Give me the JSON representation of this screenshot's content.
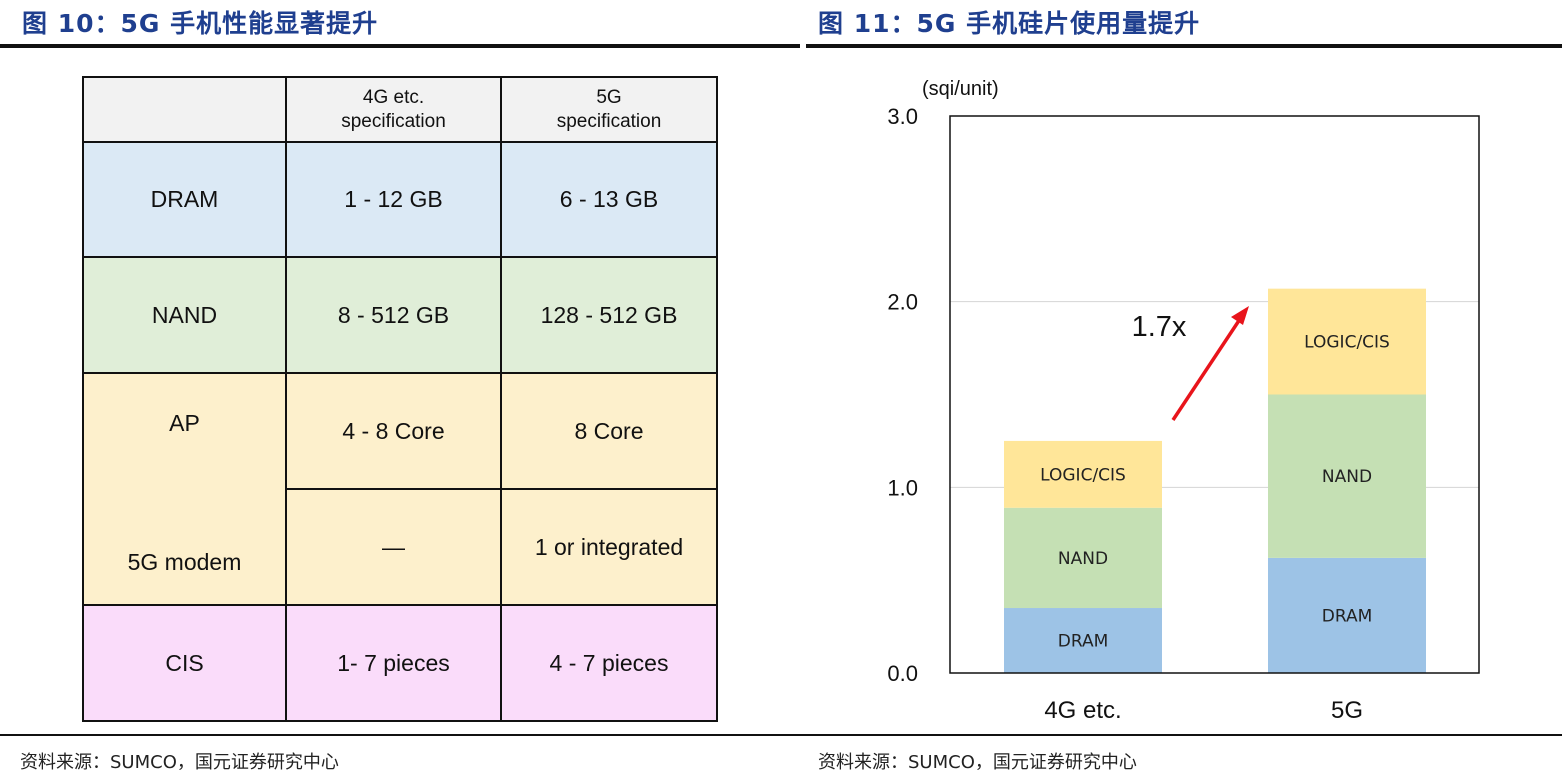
{
  "left_figure": {
    "title": "图 10：5G 手机性能显著提升",
    "source": "资料来源：SUMCO，国元证券研究中心",
    "table": {
      "header": {
        "corner": "",
        "col1_line1": "4G etc.",
        "col1_line2": "specification",
        "col2_line1": "5G",
        "col2_line2": "specification"
      },
      "rows": [
        {
          "label": "DRAM",
          "c4g": "1 - 12 GB",
          "c5g": "6 - 13 GB",
          "color": "#dbe9f5"
        },
        {
          "label": "NAND",
          "c4g": "8 - 512 GB",
          "c5g": "128 - 512 GB",
          "color": "#e0eed8"
        },
        {
          "label": "AP",
          "c4g": "4 - 8 Core",
          "c5g": "8 Core",
          "color": "#fdf0cc"
        },
        {
          "label": "5G modem",
          "c4g": "—",
          "c5g": "1 or integrated",
          "color": "#fdf0cc"
        },
        {
          "label": "CIS",
          "c4g": "1- 7 pieces",
          "c5g": "4 - 7 pieces",
          "color": "#fadcfa"
        }
      ]
    }
  },
  "right_figure": {
    "title": "图 11：5G 手机硅片使用量提升",
    "source": "资料来源：SUMCO，国元证券研究中心",
    "annotation": "1.7x"
  },
  "chart_data": {
    "type": "bar",
    "stacked": true,
    "categories": [
      "4G etc.",
      "5G"
    ],
    "series": [
      {
        "name": "DRAM",
        "values": [
          0.35,
          0.62
        ],
        "color": "#9dc3e6"
      },
      {
        "name": "NAND",
        "values": [
          0.54,
          0.88
        ],
        "color": "#c5e0b4"
      },
      {
        "name": "LOGIC/CIS",
        "values": [
          0.36,
          0.57
        ],
        "color": "#ffe699"
      }
    ],
    "ylabel": "(sqi/unit)",
    "ylim": [
      0,
      3.0
    ],
    "yticks": [
      0.0,
      1.0,
      2.0,
      3.0
    ],
    "ytick_labels": [
      "0.0",
      "1.0",
      "2.0",
      "3.0"
    ],
    "grid": true,
    "legend": "none"
  }
}
